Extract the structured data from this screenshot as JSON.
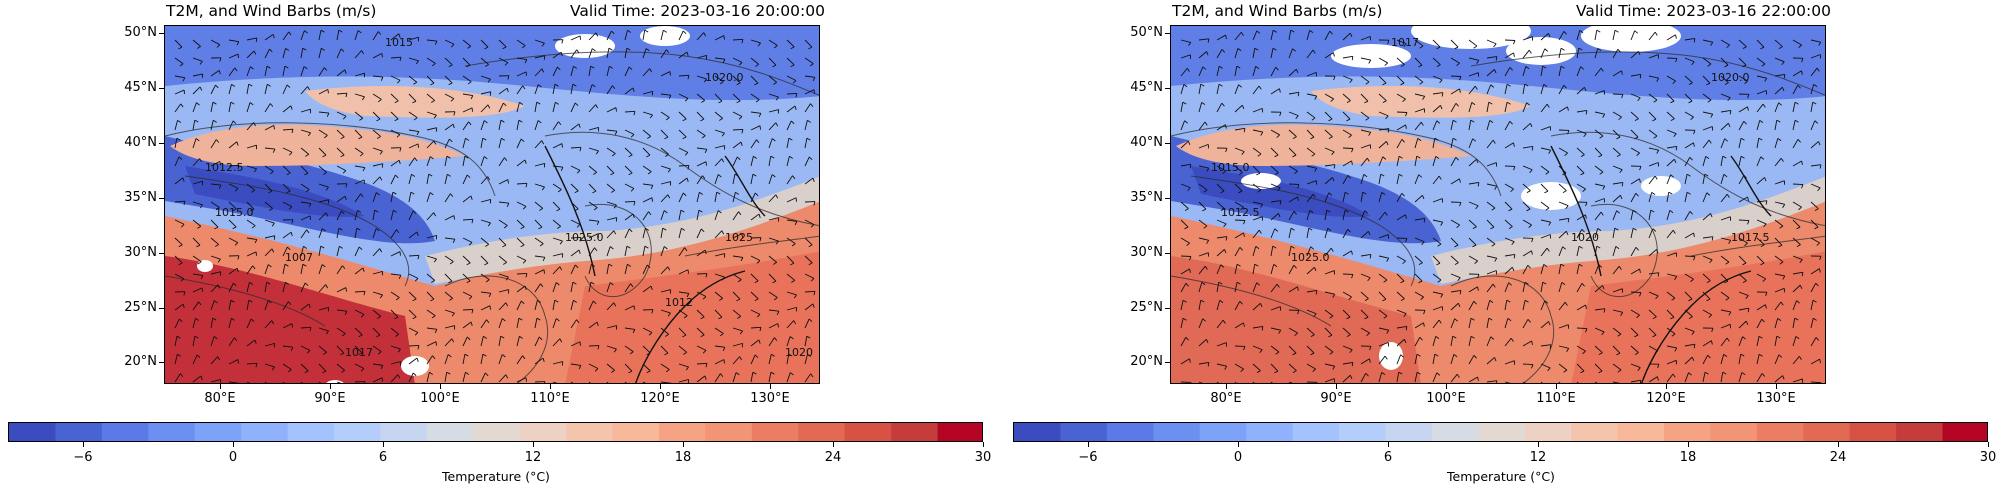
{
  "panels": [
    {
      "title": "T2M, and Wind Barbs (m/s)",
      "valid_time": "Valid Time: 2023-03-16 20:00:00",
      "contour_labels": [
        "1020.0",
        "1012.5",
        "1015.0",
        "1007",
        "1025",
        "1015",
        "1025.0",
        "1017",
        "1012",
        "1020"
      ]
    },
    {
      "title": "T2M, and Wind Barbs (m/s)",
      "valid_time": "Valid Time: 2023-03-16 22:00:00",
      "contour_labels": [
        "1020.0",
        "1015.0",
        "1012.5",
        "1025.0",
        "1017.5",
        "1017",
        "1020"
      ]
    }
  ],
  "axes": {
    "lat_ticks": [
      "50°N",
      "45°N",
      "40°N",
      "35°N",
      "30°N",
      "25°N",
      "20°N"
    ],
    "lon_ticks": [
      "80°E",
      "90°E",
      "100°E",
      "110°E",
      "120°E",
      "130°E"
    ]
  },
  "colorbar": {
    "label": "Temperature (°C)",
    "ticks": [
      "−6",
      "0",
      "6",
      "12",
      "18",
      "24",
      "30"
    ],
    "colors": [
      "#3b4cc0",
      "#4a63d3",
      "#5b7ae5",
      "#6c8ff1",
      "#7ea1fa",
      "#90b2fe",
      "#a3c2fe",
      "#b5cdfa",
      "#c6d6f1",
      "#d6dce4",
      "#e3d9d3",
      "#edd1c2",
      "#f4c5ad",
      "#f7b89c",
      "#f6a385",
      "#f39475",
      "#eb7d62",
      "#e26952",
      "#d65244",
      "#c43c3c",
      "#b40426"
    ]
  }
}
